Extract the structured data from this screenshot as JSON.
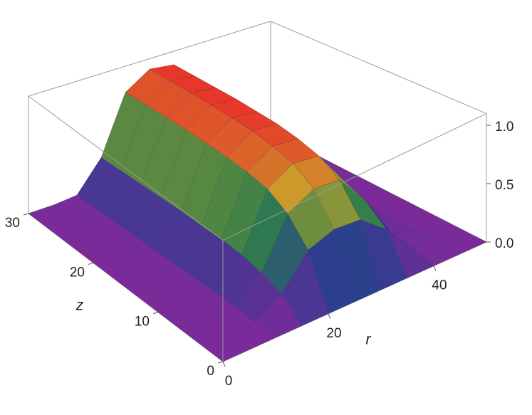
{
  "chart_data": {
    "type": "surface",
    "x": [
      0,
      5,
      10,
      15,
      20,
      25,
      30,
      35,
      40,
      45,
      50
    ],
    "y": [
      0,
      3,
      6,
      9,
      12,
      15,
      18,
      21,
      24,
      27,
      30
    ],
    "values": [
      [
        0,
        0,
        0,
        0,
        0,
        0,
        0,
        0,
        0,
        0,
        0
      ],
      [
        0,
        0,
        0.01,
        0.16,
        0.45,
        0.53,
        0.51,
        0.32,
        0.05,
        0,
        0
      ],
      [
        0,
        0,
        0.02,
        0.23,
        0.66,
        0.78,
        0.76,
        0.47,
        0.08,
        0,
        0
      ],
      [
        0,
        0,
        0.02,
        0.27,
        0.77,
        0.9,
        0.87,
        0.54,
        0.09,
        0,
        0
      ],
      [
        0,
        0,
        0.02,
        0.29,
        0.81,
        0.95,
        0.92,
        0.57,
        0.1,
        0,
        0
      ],
      [
        0,
        0,
        0.02,
        0.29,
        0.83,
        0.98,
        0.95,
        0.59,
        0.1,
        0,
        0
      ],
      [
        0,
        0,
        0.02,
        0.3,
        0.84,
        0.99,
        0.96,
        0.59,
        0.1,
        0,
        0
      ],
      [
        0,
        0,
        0.02,
        0.3,
        0.85,
        1,
        0.97,
        0.6,
        0.1,
        0,
        0
      ],
      [
        0,
        0,
        0.02,
        0.3,
        0.85,
        1,
        0.97,
        0.6,
        0.1,
        0,
        0
      ],
      [
        0,
        0,
        0.02,
        0.3,
        0.85,
        1,
        0.97,
        0.6,
        0.1,
        0,
        0
      ],
      [
        0,
        0,
        0.02,
        0.3,
        0.85,
        1,
        0.97,
        0.6,
        0.1,
        0,
        0
      ]
    ],
    "xlim": [
      0,
      50
    ],
    "ylim": [
      0,
      30
    ],
    "zlim": [
      0,
      1.1
    ],
    "xticks": [
      0,
      20,
      40
    ],
    "yticks": [
      0,
      10,
      20,
      30
    ],
    "zticks": [
      {
        "value": 0,
        "label": "0.0"
      },
      {
        "value": 0.5,
        "label": "0.5"
      },
      {
        "value": 1,
        "label": "1.0"
      }
    ],
    "xlabel": "r",
    "ylabel": "z"
  }
}
